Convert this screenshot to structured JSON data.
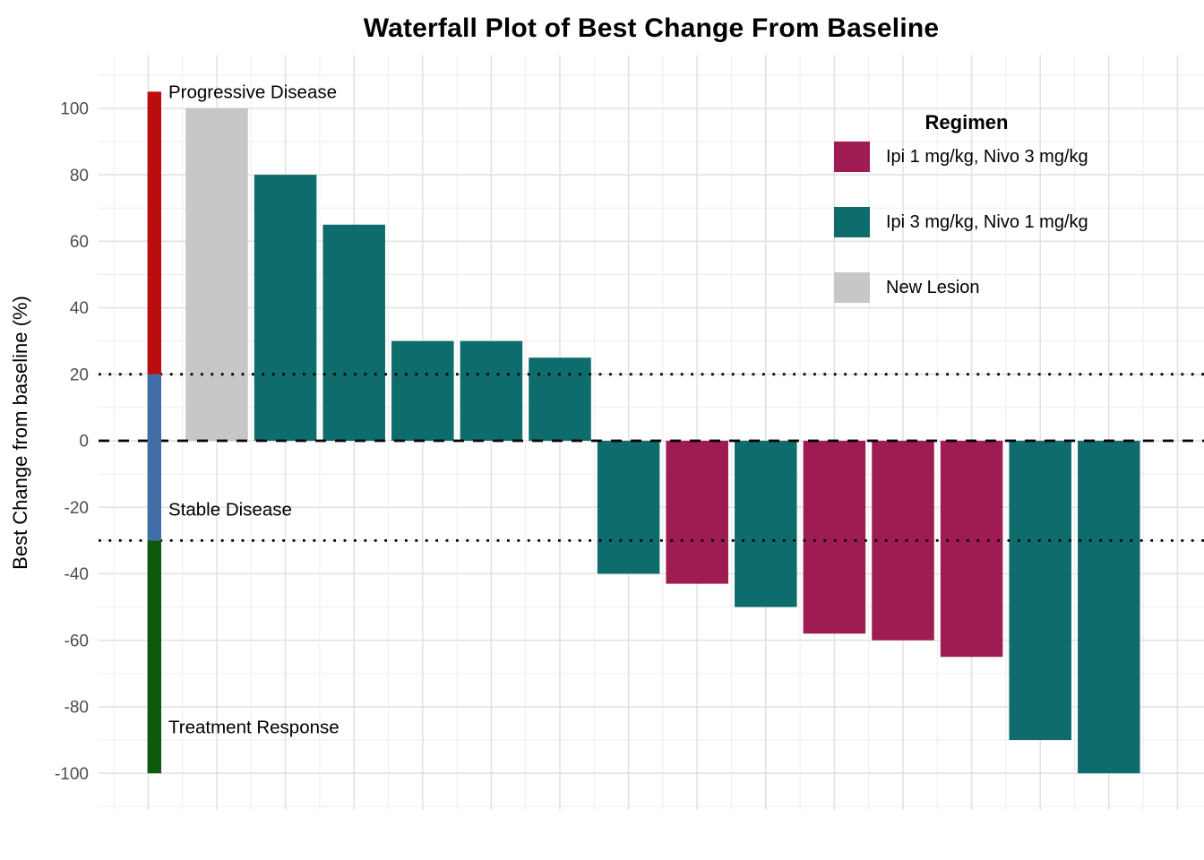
{
  "title": "Waterfall Plot of Best Change From Baseline",
  "chart_data": {
    "type": "bar",
    "title": "Waterfall Plot of Best Change From Baseline",
    "xlabel": "",
    "ylabel": "Best Change from baseline (%)",
    "ylim": [
      -111,
      116
    ],
    "yticks": [
      100,
      80,
      60,
      40,
      20,
      0,
      -20,
      -40,
      -60,
      -80,
      -100
    ],
    "grid": {
      "on": true,
      "major_step": 20,
      "minor_step": 10
    },
    "legend_position": "top-right-inside",
    "bars": [
      {
        "value": 100,
        "group": "new_lesion"
      },
      {
        "value": 80,
        "group": "ipi3_nivo1"
      },
      {
        "value": 65,
        "group": "ipi3_nivo1"
      },
      {
        "value": 30,
        "group": "ipi3_nivo1"
      },
      {
        "value": 30,
        "group": "ipi3_nivo1"
      },
      {
        "value": 25,
        "group": "ipi3_nivo1"
      },
      {
        "value": -40,
        "group": "ipi3_nivo1"
      },
      {
        "value": -43,
        "group": "ipi1_nivo3"
      },
      {
        "value": -50,
        "group": "ipi3_nivo1"
      },
      {
        "value": -58,
        "group": "ipi1_nivo3"
      },
      {
        "value": -60,
        "group": "ipi1_nivo3"
      },
      {
        "value": -65,
        "group": "ipi1_nivo3"
      },
      {
        "value": -90,
        "group": "ipi3_nivo1"
      },
      {
        "value": -100,
        "group": "ipi3_nivo1"
      }
    ],
    "palette": {
      "ipi1_nivo3": "#9E1C52",
      "ipi3_nivo1": "#0E6C6C",
      "new_lesion": "#C7C7C7"
    },
    "reference_lines": [
      {
        "y": 20,
        "style": "dotted",
        "color": "#000000"
      },
      {
        "y": 0,
        "style": "dashed",
        "color": "#000000"
      },
      {
        "y": -30,
        "style": "dotted",
        "color": "#000000"
      }
    ],
    "response_bands": [
      {
        "label": "Progressive Disease",
        "from": 105,
        "to": 20,
        "color": "#BB0D0D",
        "label_y": 105
      },
      {
        "label": "Stable Disease",
        "from": 20,
        "to": -30,
        "color": "#426EA8",
        "label_y": -20.5
      },
      {
        "label": "Treatment Response",
        "from": -30,
        "to": -100,
        "color": "#0D5A0D",
        "label_y": -86
      }
    ]
  },
  "legend": {
    "title": "Regimen",
    "items": [
      {
        "key": "ipi1_nivo3",
        "label": "Ipi 1 mg/kg, Nivo 3 mg/kg"
      },
      {
        "key": "ipi3_nivo1",
        "label": "Ipi 3 mg/kg, Nivo 1 mg/kg"
      },
      {
        "key": "new_lesion",
        "label": "New Lesion"
      }
    ]
  },
  "colors": {
    "background": "#FFFFFF",
    "grid_major": "#E2E2E2",
    "grid_minor": "#EDEDED",
    "tick_label": "#4D4D4D",
    "progressive_disease": "#BB0D0D",
    "stable_disease": "#426EA8",
    "treatment_response": "#0D5A0D"
  }
}
